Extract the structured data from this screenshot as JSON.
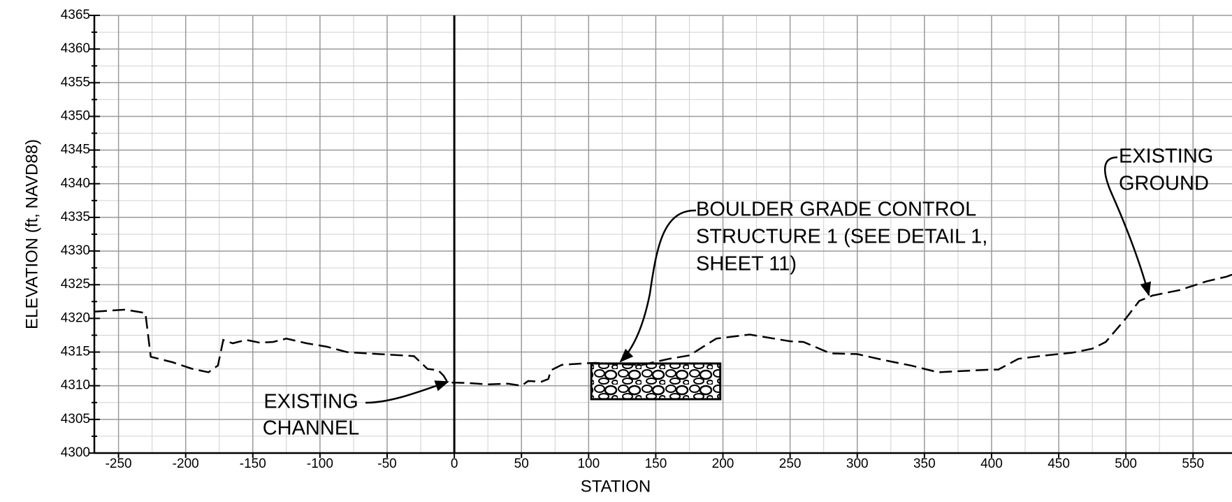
{
  "chart_data": {
    "type": "line",
    "x_label": "STATION",
    "y_label": "ELEVATION (ft, NAVD88)",
    "xlim": [
      -268,
      579
    ],
    "ylim": [
      4300,
      4365
    ],
    "xticks": [
      -250,
      -200,
      -150,
      -100,
      -50,
      0,
      50,
      100,
      150,
      200,
      250,
      300,
      350,
      400,
      450,
      500,
      550
    ],
    "yticks": [
      4300,
      4305,
      4310,
      4315,
      4320,
      4325,
      4330,
      4335,
      4340,
      4345,
      4350,
      4355,
      4360,
      4365
    ],
    "grid": true,
    "reference_line_x": 0,
    "series": [
      {
        "color": "#000000",
        "x": [
          -268,
          -245,
          -230,
          -226,
          -210,
          -195,
          -183,
          -176,
          -172,
          -165,
          -155,
          -145,
          -135,
          -125,
          -110,
          -95,
          -80,
          -65,
          -30,
          -20,
          -12,
          -8,
          -5,
          10,
          25,
          40,
          50,
          55,
          65,
          70,
          72,
          80,
          95,
          105,
          120,
          140,
          160,
          175,
          195,
          220,
          250,
          260,
          280,
          300,
          320,
          340,
          360,
          380,
          400,
          405,
          420,
          440,
          460,
          475,
          485,
          500,
          510,
          520,
          540,
          560,
          575,
          579
        ],
        "values": [
          4321,
          4321.3,
          4320.8,
          4314.3,
          4313.5,
          4312.5,
          4312,
          4313,
          4316.8,
          4316.3,
          4316.8,
          4316.4,
          4316.5,
          4317,
          4316.3,
          4315.8,
          4315,
          4314.8,
          4314.4,
          4312.5,
          4312.3,
          4311.5,
          4310.5,
          4310.4,
          4310.2,
          4310.3,
          4310,
          4310.7,
          4310.6,
          4311,
          4312.3,
          4313.1,
          4313.3,
          4313.4,
          4313.2,
          4313.1,
          4314,
          4314.5,
          4317,
          4317.6,
          4316.6,
          4316.5,
          4314.8,
          4314.7,
          4313.8,
          4313,
          4312,
          4312.2,
          4312.4,
          4312.4,
          4314,
          4314.5,
          4314.9,
          4315.5,
          4316.5,
          4320,
          4322.6,
          4323.4,
          4324.2,
          4325.5,
          4326.2,
          4326.5
        ]
      }
    ],
    "structure": {
      "station": [
        102,
        198
      ],
      "elevation": [
        4308,
        4313.3
      ]
    },
    "annotations": [
      {
        "lines": [
          "EXISTING",
          "CHANNEL"
        ]
      },
      {
        "lines": [
          "BOULDER GRADE CONTROL",
          "STRUCTURE 1 (SEE DETAIL 1,",
          "SHEET 11)"
        ]
      },
      {
        "lines": [
          "EXISTING",
          "GROUND"
        ]
      }
    ]
  }
}
